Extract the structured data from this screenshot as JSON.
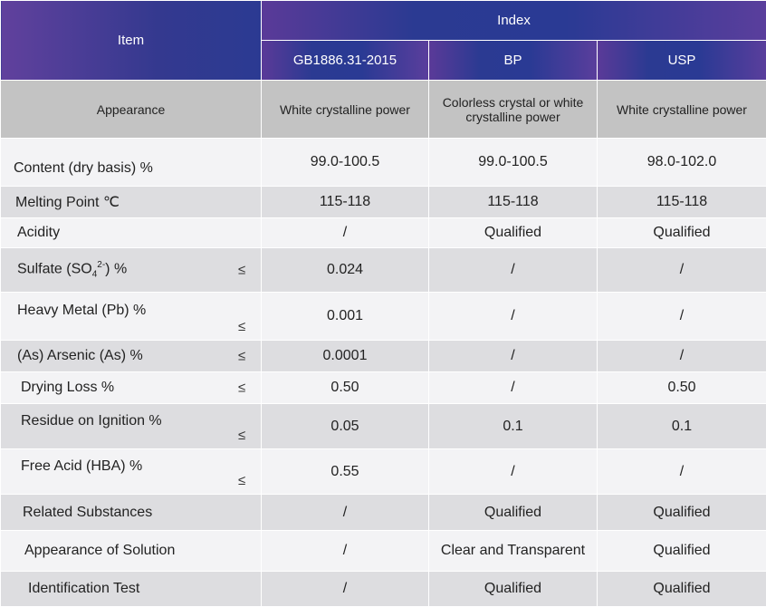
{
  "header": {
    "item": "Item",
    "index": "Index",
    "standards": [
      "GB1886.31-2015",
      "BP",
      "USP"
    ]
  },
  "le_symbol": "≤",
  "rows": [
    {
      "name": "Appearance",
      "vals": [
        "White crystalline power",
        "Colorless crystal or white crystalline power",
        "White crystalline power"
      ]
    },
    {
      "name": "Content (dry basis) %",
      "vals": [
        "99.0-100.5",
        "99.0-100.5",
        "98.0-102.0"
      ]
    },
    {
      "name": "Melting Point ℃",
      "vals": [
        "115-118",
        "115-118",
        "115-118"
      ]
    },
    {
      "name": "Acidity",
      "vals": [
        "/",
        "Qualified",
        "Qualified"
      ]
    },
    {
      "name_pre": "Sulfate (SO",
      "name_sub": "4",
      "name_sup": "2-",
      "name_post": ") %",
      "vals": [
        "0.024",
        "/",
        "/"
      ]
    },
    {
      "name": "Heavy Metal (Pb)  %",
      "vals": [
        "0.001",
        "/",
        "/"
      ]
    },
    {
      "name": "(As)  Arsenic (As)  %",
      "vals": [
        "0.0001",
        "/",
        "/"
      ]
    },
    {
      "name": "Drying Loss %",
      "vals": [
        "0.50",
        "/",
        "0.50"
      ]
    },
    {
      "name": "Residue on Ignition %",
      "vals": [
        "0.05",
        "0.1",
        "0.1"
      ]
    },
    {
      "name": "Free Acid (HBA) %",
      "vals": [
        "0.55",
        "/",
        "/"
      ]
    },
    {
      "name": "Related Substances",
      "vals": [
        "/",
        "Qualified",
        "Qualified"
      ]
    },
    {
      "name": "Appearance of Solution",
      "vals": [
        "/",
        "Clear and Transparent",
        "Qualified"
      ]
    },
    {
      "name": "Identification Test",
      "vals": [
        "/",
        "Qualified",
        "Qualified"
      ]
    }
  ]
}
